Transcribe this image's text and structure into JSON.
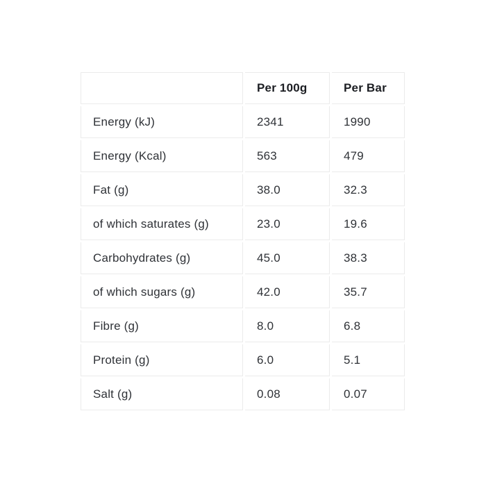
{
  "nutrition": {
    "columns": [
      "",
      "Per 100g",
      "Per Bar"
    ],
    "rows": [
      [
        "Energy (kJ)",
        "2341",
        "1990"
      ],
      [
        "Energy (Kcal)",
        "563",
        "479"
      ],
      [
        "Fat (g)",
        "38.0",
        "32.3"
      ],
      [
        "of which saturates (g)",
        "23.0",
        "19.6"
      ],
      [
        "Carbohydrates (g)",
        "45.0",
        "38.3"
      ],
      [
        "of which sugars (g)",
        "42.0",
        "35.7"
      ],
      [
        "Fibre (g)",
        "8.0",
        "6.8"
      ],
      [
        "Protein (g)",
        "6.0",
        "5.1"
      ],
      [
        "Salt (g)",
        "0.08",
        "0.07"
      ]
    ]
  },
  "colors": {
    "background": "#ffffff",
    "border": "#ebebeb",
    "text": "#2f3237",
    "header_text": "#1c1e23"
  }
}
